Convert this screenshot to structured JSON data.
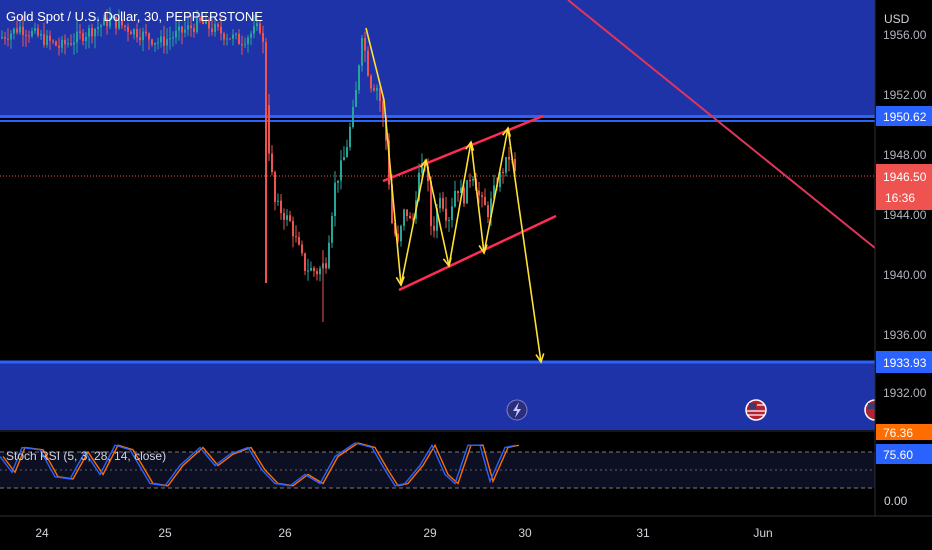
{
  "header": {
    "symbol_title": "Gold Spot / U.S. Dollar, 30, PEPPERSTONE"
  },
  "price_axis": {
    "currency": "USD",
    "ticks": [
      "1956.00",
      "1952.00",
      "1948.00",
      "1944.00",
      "1940.00",
      "1936.00",
      "1932.00"
    ]
  },
  "price_labels": {
    "resistance": "1950.62",
    "current_price": "1946.50",
    "countdown": "16:36",
    "support": "1933.93"
  },
  "time_axis": {
    "labels": [
      "24",
      "25",
      "26",
      "29",
      "30",
      "31",
      "Jun"
    ]
  },
  "indicator": {
    "name": "Stoch RSI (5, 3, 28, 14, close)",
    "axis_ticks": [
      "0.00"
    ],
    "value_k": "76.36",
    "value_d": "75.60"
  },
  "colors": {
    "zone_fill": "#1f33a8",
    "zone_line": "#2962ff",
    "channel": "#ff2d55",
    "arrows": "#ffe135",
    "trendline": "#e0355a",
    "candle_up": "#26a69a",
    "candle_down": "#ef5350",
    "price_badge": "#ef5350",
    "stoch_k": "#2962ff",
    "stoch_d": "#ff6d00"
  },
  "chart_data": {
    "type": "candlestick",
    "ylim": [
      1930.8,
      1957.9
    ],
    "levels": {
      "resistance": 1950.62,
      "support": 1933.93,
      "current": 1946.5
    },
    "x_day_labels": [
      "24",
      "25",
      "26",
      "29",
      "30",
      "31",
      "Jun"
    ],
    "projected_path": [
      {
        "date": "May 29",
        "price": 1944.8
      },
      {
        "date": "May 29",
        "price": 1938.6
      },
      {
        "date": "May 29",
        "price": 1946.9
      },
      {
        "date": "May 29",
        "price": 1940.4
      },
      {
        "date": "May 29",
        "price": 1947.8
      },
      {
        "date": "May 29",
        "price": 1941.0
      },
      {
        "date": "May 29",
        "price": 1948.5
      },
      {
        "date": "May 30",
        "price": 1933.8
      }
    ],
    "channel": {
      "upper": [
        {
          "date": "May 29",
          "price": 1945.7
        },
        {
          "date": "May 30",
          "price": 1949.1
        }
      ],
      "lower": [
        {
          "date": "May 29",
          "price": 1938.6
        },
        {
          "date": "May 30",
          "price": 1943.8
        }
      ]
    },
    "stoch_rsi": {
      "k": 76.36,
      "d": 75.6
    }
  }
}
